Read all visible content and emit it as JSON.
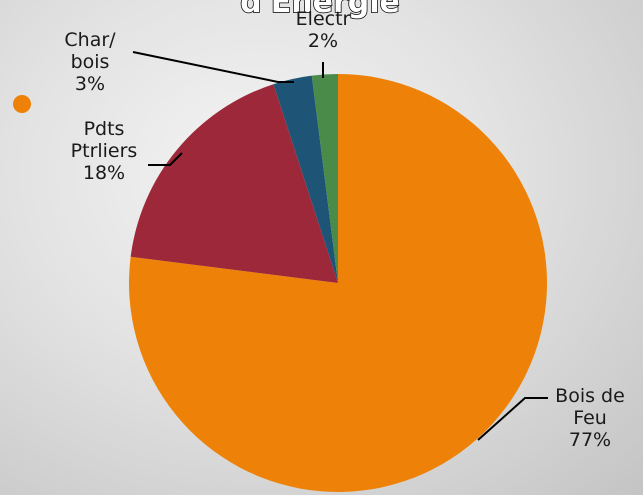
{
  "title": "d'Energie",
  "colors": {
    "bullet": "#ee8208"
  },
  "chart_data": {
    "type": "pie",
    "title": "d'Energie",
    "slices": [
      {
        "label_lines": [
          "Bois de",
          "Feu"
        ],
        "percent_label": "77%",
        "value": 77,
        "color": "#ee8208"
      },
      {
        "label_lines": [
          "Pdts",
          "Ptrliers"
        ],
        "percent_label": "18%",
        "value": 18,
        "color": "#9c2839"
      },
      {
        "label_lines": [
          "Char/",
          "bois"
        ],
        "percent_label": "3%",
        "value": 3,
        "color": "#1e5577"
      },
      {
        "label_lines": [
          "Electr"
        ],
        "percent_label": "2%",
        "value": 2,
        "color": "#4a8b4a"
      }
    ]
  }
}
